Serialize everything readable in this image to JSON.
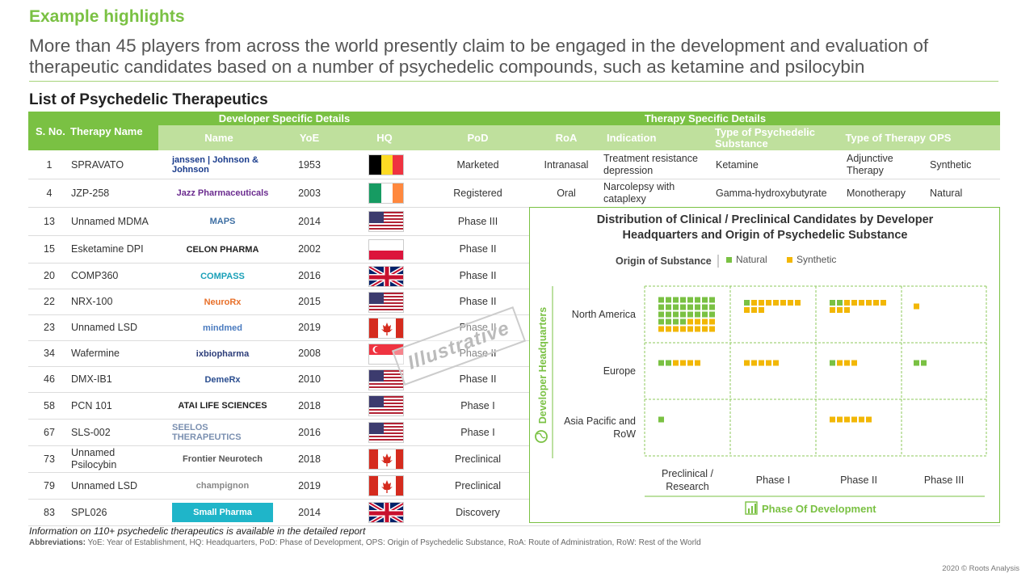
{
  "headline": "Example highlights",
  "subtitle": "More than 45 players from across the world presently claim to be engaged in the development and evaluation of therapeutic candidates based on a number of psychedelic compounds, such as ketamine and psilocybin",
  "section_title": "List of Psychedelic Therapeutics",
  "table": {
    "group_headers": {
      "developer": "Developer Specific Details",
      "therapy": "Therapy Specific Details"
    },
    "columns": {
      "sno": "S. No.",
      "therapy_name": "Therapy Name",
      "name": "Name",
      "yoe": "YoE",
      "hq": "HQ",
      "pod": "PoD",
      "roa": "RoA",
      "indication": "Indication",
      "type_psychedelic": "Type of Psychedelic Substance",
      "type_therapy": "Type of Therapy",
      "ops": "OPS"
    },
    "rows": [
      {
        "sno": "1",
        "therapy": "SPRAVATO",
        "developer_logo": "janssen | Johnson & Johnson",
        "yoe": "1953",
        "flag": "belgium-flag",
        "pod": "Marketed",
        "roa": "Intranasal",
        "indication": "Treatment resistance depression",
        "substance": "Ketamine",
        "therapy_type": "Adjunctive Therapy",
        "ops": "Synthetic"
      },
      {
        "sno": "4",
        "therapy": "JZP-258",
        "developer_logo": "Jazz Pharmaceuticals",
        "yoe": "2003",
        "flag": "ireland-flag",
        "pod": "Registered",
        "roa": "Oral",
        "indication": "Narcolepsy with cataplexy",
        "substance": "Gamma-hydroxybutyrate",
        "therapy_type": "Monotherapy",
        "ops": "Natural"
      },
      {
        "sno": "13",
        "therapy": "Unnamed MDMA",
        "developer_logo": "MAPS",
        "yoe": "2014",
        "flag": "usa-flag",
        "pod": "Phase III"
      },
      {
        "sno": "15",
        "therapy": "Esketamine DPI",
        "developer_logo": "CELON PHARMA",
        "yoe": "2002",
        "flag": "poland-flag",
        "pod": "Phase II"
      },
      {
        "sno": "20",
        "therapy": "COMP360",
        "developer_logo": "COMPASS",
        "yoe": "2016",
        "flag": "uk-flag",
        "pod": "Phase II"
      },
      {
        "sno": "22",
        "therapy": "NRX-100",
        "developer_logo": "NeuroRx",
        "yoe": "2015",
        "flag": "usa-flag",
        "pod": "Phase II"
      },
      {
        "sno": "23",
        "therapy": "Unnamed LSD",
        "developer_logo": "mindmed",
        "yoe": "2019",
        "flag": "canada-flag",
        "pod": "Phase II"
      },
      {
        "sno": "34",
        "therapy": "Wafermine",
        "developer_logo": "ixbiopharma",
        "yoe": "2008",
        "flag": "singapore-flag",
        "pod": "Phase II"
      },
      {
        "sno": "46",
        "therapy": "DMX-IB1",
        "developer_logo": "DemeRx",
        "yoe": "2010",
        "flag": "usa-flag",
        "pod": "Phase II"
      },
      {
        "sno": "58",
        "therapy": "PCN 101",
        "developer_logo": "ATAI LIFE SCIENCES",
        "yoe": "2018",
        "flag": "usa-flag",
        "pod": "Phase I"
      },
      {
        "sno": "67",
        "therapy": "SLS-002",
        "developer_logo": "SEELOS THERAPEUTICS",
        "yoe": "2016",
        "flag": "usa-flag",
        "pod": "Phase I"
      },
      {
        "sno": "73",
        "therapy": "Unnamed Psilocybin",
        "developer_logo": "Frontier Neurotech",
        "yoe": "2018",
        "flag": "canada-flag",
        "pod": "Preclinical"
      },
      {
        "sno": "79",
        "therapy": "Unnamed LSD",
        "developer_logo": "champignon",
        "yoe": "2019",
        "flag": "canada-flag",
        "pod": "Preclinical"
      },
      {
        "sno": "83",
        "therapy": "SPL026",
        "developer_logo": "Small Pharma",
        "yoe": "2014",
        "flag": "uk-flag",
        "pod": "Discovery"
      }
    ]
  },
  "stamp": "Illustrative",
  "notes": "Information on 110+ psychedelic therapeutics is available in the detailed report",
  "abbreviations": {
    "label": "Abbreviations:",
    "text": "YoE: Year of Establishment,  HQ: Headquarters, PoD:  Phase of Development,  OPS: Origin of Psychedelic Substance, RoA: Route of Administration, RoW:  Rest of the World"
  },
  "copyright": "2020 © Roots Analysis",
  "colors": {
    "accent": "#7ac143",
    "accent_light": "#bfe09d",
    "natural": "#7ac143",
    "synthetic": "#f2b705"
  },
  "chart_data": {
    "type": "heatmap",
    "title": "Distribution of Clinical / Preclinical Candidates by Developer Headquarters and Origin of Psychedelic Substance",
    "legend_title": "Origin of Substance",
    "legend": [
      "Natural",
      "Synthetic"
    ],
    "ylabel": "Developer Headquarters",
    "xlabel": "Phase Of Development",
    "rows": [
      "North America",
      "Europe",
      "Asia Pacific and RoW"
    ],
    "columns": [
      "Preclinical / Research",
      "Phase I",
      "Phase II",
      "Phase III"
    ],
    "cells": [
      {
        "row": "North America",
        "column": "Preclinical / Research",
        "natural": 28,
        "synthetic": 12
      },
      {
        "row": "North America",
        "column": "Phase I",
        "natural": 1,
        "synthetic": 10
      },
      {
        "row": "North America",
        "column": "Phase II",
        "natural": 2,
        "synthetic": 9
      },
      {
        "row": "North America",
        "column": "Phase III",
        "natural": 0,
        "synthetic": 1
      },
      {
        "row": "Europe",
        "column": "Preclinical / Research",
        "natural": 2,
        "synthetic": 4
      },
      {
        "row": "Europe",
        "column": "Phase I",
        "natural": 0,
        "synthetic": 5
      },
      {
        "row": "Europe",
        "column": "Phase II",
        "natural": 1,
        "synthetic": 3
      },
      {
        "row": "Europe",
        "column": "Phase III",
        "natural": 2,
        "synthetic": 0
      },
      {
        "row": "Asia Pacific and RoW",
        "column": "Preclinical / Research",
        "natural": 1,
        "synthetic": 0
      },
      {
        "row": "Asia Pacific and RoW",
        "column": "Phase I",
        "natural": 0,
        "synthetic": 0
      },
      {
        "row": "Asia Pacific and RoW",
        "column": "Phase II",
        "natural": 0,
        "synthetic": 6
      },
      {
        "row": "Asia Pacific and RoW",
        "column": "Phase III",
        "natural": 0,
        "synthetic": 0
      }
    ]
  }
}
